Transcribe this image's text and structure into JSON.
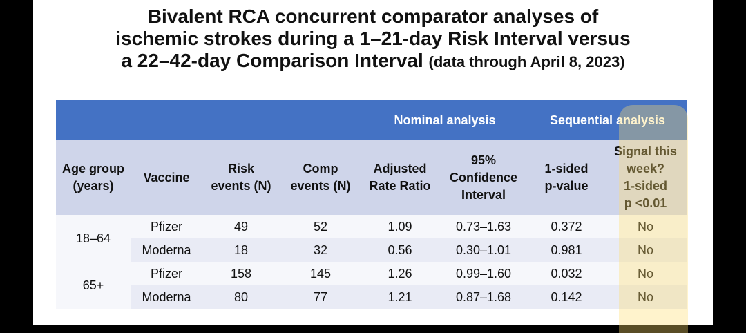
{
  "title": {
    "line1": "Bivalent RCA concurrent comparator analyses of",
    "line2": "ischemic strokes during a 1–21-day Risk Interval versus",
    "line3": "a 22–42-day Comparison Interval",
    "note": "(data through April 8, 2023)"
  },
  "groups": {
    "nominal": "Nominal analysis",
    "sequential": "Sequential analysis"
  },
  "headers": {
    "age_group": [
      "Age group",
      "(years)"
    ],
    "vaccine": [
      "Vaccine"
    ],
    "risk_events": [
      "Risk",
      "events (N)"
    ],
    "comp_events": [
      "Comp",
      "events (N)"
    ],
    "adjusted_rr": [
      "Adjusted",
      "Rate Ratio"
    ],
    "ci": [
      "95%",
      "Confidence",
      "Interval"
    ],
    "p_value": [
      "1-sided",
      "p-value"
    ],
    "signal": [
      "Signal this",
      "week?",
      "1-sided",
      "p <0.01"
    ]
  },
  "age_groups": [
    "18–64",
    "65+"
  ],
  "rows": [
    {
      "vaccine": "Pfizer",
      "risk": "49",
      "comp": "52",
      "rr": "1.09",
      "ci": "0.73–1.63",
      "p": "0.372",
      "signal": "No"
    },
    {
      "vaccine": "Moderna",
      "risk": "18",
      "comp": "32",
      "rr": "0.56",
      "ci": "0.30–1.01",
      "p": "0.981",
      "signal": "No"
    },
    {
      "vaccine": "Pfizer",
      "risk": "158",
      "comp": "145",
      "rr": "1.26",
      "ci": "0.99–1.60",
      "p": "0.032",
      "signal": "No"
    },
    {
      "vaccine": "Moderna",
      "risk": "80",
      "comp": "77",
      "rr": "1.21",
      "ci": "0.87–1.68",
      "p": "0.142",
      "signal": "No"
    }
  ],
  "colors": {
    "header_blue": "#4472c4",
    "header_light": "#cfd5ea",
    "band": "#e9ebf5",
    "highlight": "#ffde6e"
  }
}
